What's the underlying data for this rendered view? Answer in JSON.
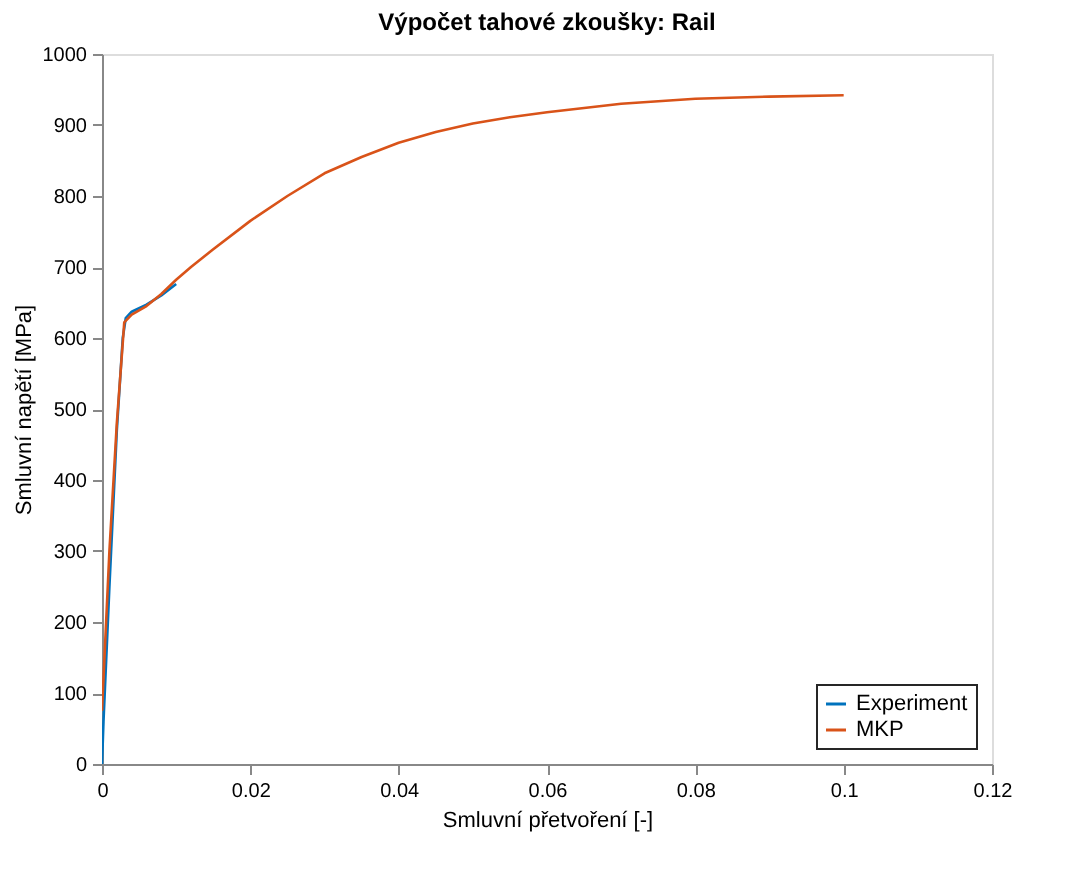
{
  "chart_data": {
    "type": "line",
    "title": "Výpočet tahové zkoušky: Rail",
    "xlabel": "Smluvní přetvoření [-]",
    "ylabel": "Smluvní napětí [MPa]",
    "series": [
      {
        "name": "Experiment",
        "color": "#0072bd",
        "x": [
          0,
          0.0002,
          0.001,
          0.002,
          0.0028,
          0.0032,
          0.004,
          0.006,
          0.008,
          0.01
        ],
        "values": [
          0,
          60,
          250,
          470,
          600,
          628,
          637,
          647,
          660,
          676
        ]
      },
      {
        "name": "MKP",
        "color": "#d95319",
        "x": [
          0,
          0.001,
          0.002,
          0.003,
          0.004,
          0.006,
          0.008,
          0.01,
          0.012,
          0.015,
          0.02,
          0.025,
          0.03,
          0.035,
          0.04,
          0.045,
          0.05,
          0.055,
          0.06,
          0.07,
          0.08,
          0.09,
          0.1
        ],
        "values": [
          75,
          300,
          480,
          622,
          633,
          645,
          662,
          682,
          700,
          725,
          765,
          800,
          832,
          855,
          875,
          890,
          902,
          911,
          918,
          930,
          937,
          940,
          942
        ]
      }
    ],
    "xlim": [
      0,
      0.12
    ],
    "xticks": [
      0,
      0.02,
      0.04,
      0.06,
      0.08,
      0.1,
      0.12
    ],
    "ylim": [
      0,
      1000
    ],
    "yticks": [
      0,
      100,
      200,
      300,
      400,
      500,
      600,
      700,
      800,
      900,
      1000
    ],
    "grid": false,
    "legend": "bottom right"
  }
}
